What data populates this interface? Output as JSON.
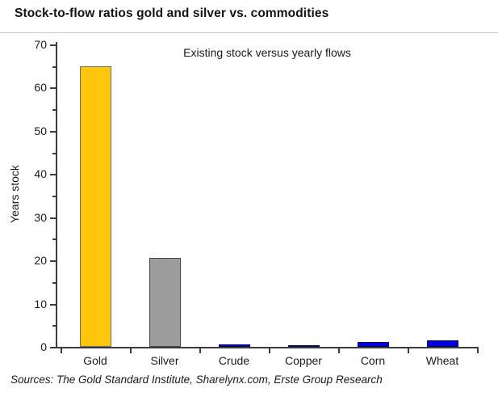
{
  "title": "Stock-to-flow ratios gold and silver vs. commodities",
  "source": "Sources: The Gold Standard Institute, Sharelynx.com, Erste Group Research",
  "chart_data": {
    "type": "bar",
    "title": "Stock-to-flow ratios gold and silver vs. commodities",
    "subtitle": "Existing stock versus yearly flows",
    "xlabel": "",
    "ylabel": "Years stock",
    "ylim": [
      0,
      70
    ],
    "ytick_interval": 10,
    "ytick_minor_interval": 5,
    "grid": false,
    "legend": false,
    "categories": [
      "Gold",
      "Silver",
      "Crude",
      "Copper",
      "Corn",
      "Wheat"
    ],
    "values": [
      65,
      20.5,
      0.5,
      0.3,
      1.2,
      1.5
    ],
    "bar_colors": [
      "#ffc60d",
      "#9c9c9c",
      "#0000e0",
      "#0000e0",
      "#0000e0",
      "#0000e0"
    ],
    "bar_edge_colors": [
      "#6e6e6e",
      "#474747",
      "#000a4d",
      "#000a4d",
      "#000a4d",
      "#000a4d"
    ],
    "background_color": "#ffffff",
    "axis_color": "#3c3c3c"
  }
}
